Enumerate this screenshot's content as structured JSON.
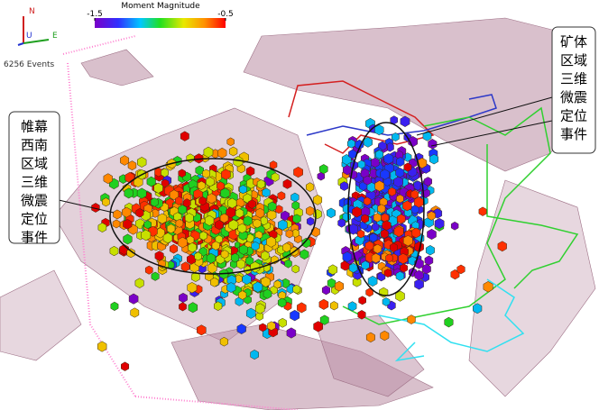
{
  "compass": {
    "north": "N",
    "up": "U",
    "east": "E"
  },
  "event_count": "6256 Events",
  "colorbar": {
    "title": "Moment Magnitude",
    "ticks": [
      -1.5,
      -0.5
    ]
  },
  "callouts": [
    {
      "lines": [
        "帷幕",
        "西南",
        "区域",
        "三维",
        "微震",
        "定位",
        "事件"
      ]
    },
    {
      "lines": [
        "矿体",
        "区域",
        "三维",
        "微震",
        "定位",
        "事件"
      ]
    }
  ]
}
